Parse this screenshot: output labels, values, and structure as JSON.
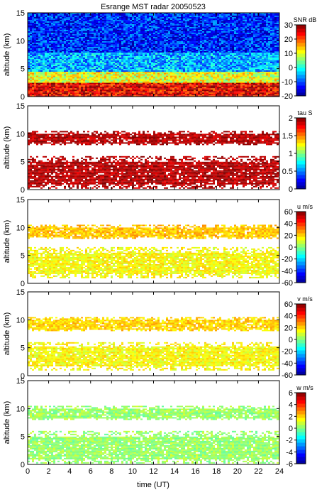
{
  "chart_data": {
    "title": "Esrange MST radar 20050523",
    "xlabel": "time (UT)",
    "x_ticks": [
      "0",
      "2",
      "4",
      "6",
      "8",
      "10",
      "12",
      "14",
      "16",
      "18",
      "20",
      "22",
      "24"
    ],
    "xlim": [
      0,
      24
    ],
    "panels": [
      {
        "type": "heatmap",
        "quantity": "snr",
        "ylabel": "altitude (km)",
        "ylim": [
          0,
          15
        ],
        "y_ticks": [
          "0",
          "5",
          "10",
          "15"
        ],
        "colorbar": {
          "label": "SNR dB",
          "range": [
            -20,
            30
          ],
          "ticks": [
            "-20",
            "-10",
            "0",
            "10",
            "20",
            "30"
          ],
          "colors": [
            "#00008f",
            "#0000ff",
            "#0080ff",
            "#00ffff",
            "#80ff80",
            "#ffff00",
            "#ff8000",
            "#ff0000",
            "#800000"
          ]
        },
        "layers": [
          {
            "alt": [
              0.2,
              2.5
            ],
            "value": 25
          },
          {
            "alt": [
              2.5,
              4.5
            ],
            "value": 10
          },
          {
            "alt": [
              4.5,
              8.0
            ],
            "value": -5
          },
          {
            "alt": [
              8.0,
              15.0
            ],
            "value": -12
          }
        ]
      },
      {
        "type": "heatmap",
        "quantity": "tau",
        "ylabel": "altitude (km)",
        "ylim": [
          0,
          15
        ],
        "y_ticks": [
          "0",
          "5",
          "10",
          "15"
        ],
        "colorbar": {
          "label": "tau S",
          "range": [
            0,
            2
          ],
          "ticks": [
            "0",
            "0.5",
            "1",
            "1.5",
            "2"
          ],
          "colors": [
            "#00008f",
            "#0000ff",
            "#0080ff",
            "#00ffff",
            "#80ff80",
            "#ffff00",
            "#ff8000",
            "#ff0000",
            "#800000"
          ]
        },
        "layers": [
          {
            "alt": [
              0.2,
              6.0
            ],
            "value": 1.9
          },
          {
            "alt": [
              8.0,
              10.5
            ],
            "value": 1.9
          }
        ]
      },
      {
        "type": "heatmap",
        "quantity": "u",
        "ylabel": "altitude (km)",
        "ylim": [
          0,
          15
        ],
        "y_ticks": [
          "0",
          "5",
          "10",
          "15"
        ],
        "colorbar": {
          "label": "u m/s",
          "range": [
            -60,
            60
          ],
          "ticks": [
            "-60",
            "-40",
            "-20",
            "0",
            "20",
            "40",
            "60"
          ],
          "colors": [
            "#00008f",
            "#0000ff",
            "#0080ff",
            "#00ffff",
            "#80ff80",
            "#ffff00",
            "#ff8000",
            "#ff0000",
            "#800000"
          ]
        },
        "layers": [
          {
            "alt": [
              1.0,
              6.5
            ],
            "value": 15
          },
          {
            "alt": [
              8.0,
              10.5
            ],
            "value": 22
          }
        ]
      },
      {
        "type": "heatmap",
        "quantity": "v",
        "ylabel": "altitude (km)",
        "ylim": [
          0,
          15
        ],
        "y_ticks": [
          "0",
          "5",
          "10",
          "15"
        ],
        "colorbar": {
          "label": "v m/s",
          "range": [
            -60,
            60
          ],
          "ticks": [
            "-60",
            "-40",
            "-20",
            "0",
            "20",
            "40",
            "60"
          ],
          "colors": [
            "#00008f",
            "#0000ff",
            "#0080ff",
            "#00ffff",
            "#80ff80",
            "#ffff00",
            "#ff8000",
            "#ff0000",
            "#800000"
          ]
        },
        "layers": [
          {
            "alt": [
              1.0,
              6.0
            ],
            "value": 15
          },
          {
            "alt": [
              8.0,
              10.5
            ],
            "value": 20
          }
        ]
      },
      {
        "type": "heatmap",
        "quantity": "w",
        "ylabel": "altitude (km)",
        "ylim": [
          0,
          15
        ],
        "y_ticks": [
          "0",
          "5",
          "10",
          "15"
        ],
        "colorbar": {
          "label": "w m/s",
          "range": [
            -6,
            6
          ],
          "ticks": [
            "-6",
            "-4",
            "-2",
            "0",
            "2",
            "4",
            "6"
          ],
          "colors": [
            "#00008f",
            "#0000ff",
            "#0080ff",
            "#00ffff",
            "#80ff80",
            "#ffff00",
            "#ff8000",
            "#ff0000",
            "#800000"
          ]
        },
        "layers": [
          {
            "alt": [
              0.2,
              6.0
            ],
            "value": 0.3
          },
          {
            "alt": [
              8.0,
              10.5
            ],
            "value": 0.3
          }
        ]
      }
    ]
  }
}
